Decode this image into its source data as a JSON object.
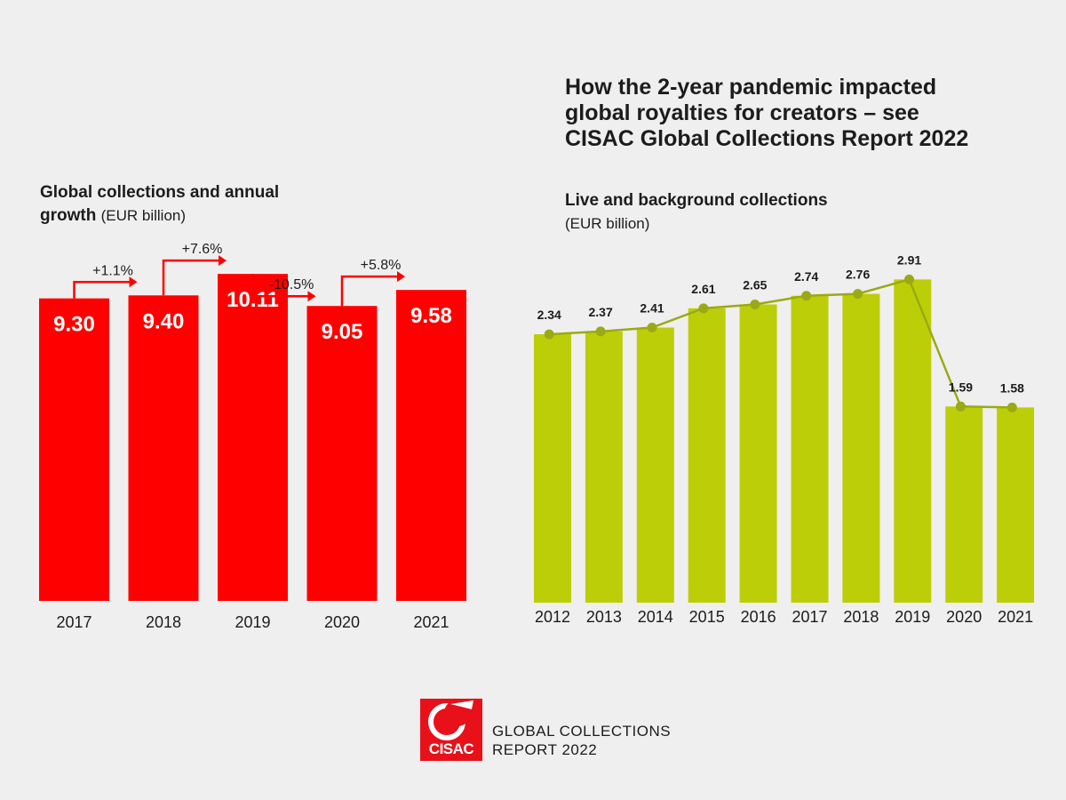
{
  "headline": {
    "line1": "How the 2-year pandemic impacted",
    "line2": "global royalties for creators – see",
    "line3": "CISAC Global Collections Report 2022"
  },
  "colors": {
    "red": "#ff0000",
    "green": "#bcce07",
    "line": "#99aa14"
  },
  "chart_data": [
    {
      "type": "bar",
      "title_bold_1": "Global collections and annual",
      "title_bold_2": "growth",
      "unit": "(EUR billion)",
      "categories": [
        "2017",
        "2018",
        "2019",
        "2020",
        "2021"
      ],
      "values": [
        9.3,
        9.4,
        10.11,
        9.05,
        9.58
      ],
      "value_labels": [
        "9.30",
        "9.40",
        "10.11",
        "9.05",
        "9.58"
      ],
      "growth_labels": [
        "+1.1%",
        "+7.6%",
        "-10.5%",
        "+5.8%"
      ]
    },
    {
      "type": "bar",
      "title": "Live and background collections",
      "unit": "(EUR billion)",
      "categories": [
        "2012",
        "2013",
        "2014",
        "2015",
        "2016",
        "2017",
        "2018",
        "2019",
        "2020",
        "2021"
      ],
      "values": [
        2.34,
        2.37,
        2.41,
        2.61,
        2.65,
        2.74,
        2.76,
        2.91,
        1.59,
        1.58
      ],
      "value_labels": [
        "2.34",
        "2.37",
        "2.41",
        "2.61",
        "2.65",
        "2.74",
        "2.76",
        "2.91",
        "1.59",
        "1.58"
      ],
      "overlay": "line"
    }
  ],
  "footer": {
    "logo_text": "CISAC",
    "line1": "GLOBAL COLLECTIONS",
    "line2": "REPORT 2022"
  }
}
